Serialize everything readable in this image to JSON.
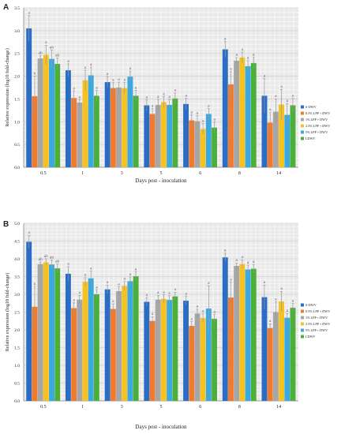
{
  "chart_data": [
    {
      "type": "bar",
      "panel_label": "A",
      "ylabel": "Relative expression (log10 fold-change)",
      "xlabel": "Days post - inoculation",
      "ylim": [
        0,
        3.5
      ],
      "yticks": [
        "0.0",
        "0.5",
        "1.0",
        "1.5",
        "2.0",
        "2.5",
        "3.0",
        "3.5"
      ],
      "grid": true,
      "legend_position": "right",
      "categories": [
        "0.5",
        "1",
        "3",
        "5",
        "6",
        "8",
        "14"
      ],
      "series": [
        {
          "name": "S-DWV",
          "color": "#2B6CC4",
          "values": [
            3.05,
            2.13,
            1.87,
            1.36,
            1.39,
            2.59,
            1.57
          ],
          "errors": [
            0.28,
            0.14,
            0.12,
            0.12,
            0.12,
            0.17,
            0.38
          ],
          "letters": [
            "a",
            "a",
            "a",
            "a",
            "a",
            "a",
            "a"
          ]
        },
        {
          "name": "0.5% LPP + DWV",
          "color": "#F07A2E",
          "values": [
            1.56,
            1.52,
            1.74,
            1.17,
            1.03,
            1.82,
            0.98
          ],
          "errors": [
            0.44,
            0.15,
            0.12,
            0.12,
            0.12,
            0.28,
            0.23
          ],
          "letters": [
            "b",
            "a",
            "a",
            "a",
            "a",
            "a",
            "a"
          ]
        },
        {
          "name": "1% LPP + DWV",
          "color": "#A6A6A6",
          "values": [
            2.39,
            1.42,
            1.75,
            1.37,
            1.01,
            2.34,
            1.22
          ],
          "errors": [
            0.06,
            0.06,
            0.12,
            0.12,
            0.12,
            0.07,
            0.28
          ],
          "letters": [
            "ab",
            "a",
            "a",
            "a",
            "a",
            "a",
            "a"
          ]
        },
        {
          "name": "2.5% LPP + DWV",
          "color": "#F5C21F",
          "values": [
            2.47,
            1.91,
            1.74,
            1.43,
            0.84,
            2.41,
            1.38
          ],
          "errors": [
            0.21,
            0.22,
            0.12,
            0.12,
            0.12,
            0.12,
            0.33
          ],
          "letters": [
            "a",
            "a",
            "a",
            "a",
            "a",
            "a",
            "a"
          ]
        },
        {
          "name": "5% LPP + DWV",
          "color": "#3BA8E0",
          "values": [
            2.38,
            2.02,
            1.99,
            1.37,
            1.17,
            2.22,
            1.15
          ],
          "errors": [
            0.19,
            0.18,
            0.12,
            0.12,
            0.12,
            0.12,
            0.25
          ],
          "letters": [
            "ab",
            "a",
            "a",
            "a",
            "a",
            "a",
            "a"
          ]
        },
        {
          "name": "LDWV",
          "color": "#4CAF3A",
          "values": [
            2.27,
            1.57,
            1.57,
            1.51,
            0.87,
            2.29,
            1.36
          ],
          "errors": [
            0.13,
            0.12,
            0.12,
            0.12,
            0.12,
            0.12,
            0.15
          ],
          "letters": [
            "ab",
            "a",
            "a",
            "a",
            "a",
            "a",
            "a"
          ]
        }
      ]
    },
    {
      "type": "bar",
      "panel_label": "B",
      "ylabel": "Relative expression (log10 fold-change)",
      "xlabel": "Days post - inoculation",
      "ylim": [
        0,
        5.0
      ],
      "yticks": [
        "0.0",
        "0.5",
        "1.0",
        "1.5",
        "2.0",
        "2.5",
        "3.0",
        "3.5",
        "4.0",
        "4.5",
        "5.0"
      ],
      "grid": true,
      "legend_position": "right",
      "categories": [
        "0.5",
        "1",
        "3",
        "5",
        "6",
        "8",
        "14"
      ],
      "series": [
        {
          "name": "S-DWV",
          "color": "#2B6CC4",
          "values": [
            4.48,
            3.58,
            3.14,
            2.79,
            2.82,
            4.04,
            2.92
          ],
          "errors": [
            0.18,
            0.2,
            0.12,
            0.12,
            0.12,
            0.12,
            0.34
          ],
          "letters": [
            "a",
            "a",
            "a",
            "a",
            "a",
            "a",
            "a"
          ]
        },
        {
          "name": "0.5% LPP + DWV",
          "color": "#F07A2E",
          "values": [
            2.65,
            2.61,
            2.59,
            2.25,
            2.11,
            2.91,
            2.05
          ],
          "errors": [
            0.56,
            0.15,
            0.14,
            0.12,
            0.12,
            0.43,
            0.12
          ],
          "letters": [
            "b",
            "a",
            "a",
            "a",
            "a",
            "a",
            "a"
          ]
        },
        {
          "name": "1% LPP + DWV",
          "color": "#A6A6A6",
          "values": [
            3.85,
            2.85,
            3.09,
            2.85,
            2.46,
            3.8,
            2.5
          ],
          "errors": [
            0.06,
            0.12,
            0.12,
            0.12,
            0.12,
            0.08,
            0.29
          ],
          "letters": [
            "ab",
            "a",
            "a",
            "a",
            "a",
            "a",
            "a"
          ]
        },
        {
          "name": "2.5% LPP + DWV",
          "color": "#F5C21F",
          "values": [
            3.9,
            3.35,
            3.24,
            2.87,
            2.33,
            3.85,
            2.8
          ],
          "errors": [
            0.1,
            0.12,
            0.12,
            0.12,
            0.12,
            0.12,
            0.28
          ],
          "letters": [
            "ab",
            "a",
            "a",
            "a",
            "a",
            "a",
            "a"
          ]
        },
        {
          "name": "5% LPP + DWV",
          "color": "#3BA8E0",
          "values": [
            3.84,
            3.45,
            3.37,
            2.84,
            2.6,
            3.7,
            2.34
          ],
          "errors": [
            0.12,
            0.2,
            0.12,
            0.12,
            0.64,
            0.12,
            0.12
          ],
          "letters": [
            "ab",
            "a",
            "a",
            "a",
            "a",
            "a",
            "a"
          ]
        },
        {
          "name": "LDWV",
          "color": "#4CAF3A",
          "values": [
            3.73,
            3.0,
            3.51,
            2.94,
            2.31,
            3.72,
            2.62
          ],
          "errors": [
            0.12,
            0.12,
            0.12,
            0.12,
            0.12,
            0.12,
            0.12
          ],
          "letters": [
            "ab",
            "a",
            "a",
            "a",
            "a",
            "a",
            "a"
          ]
        }
      ]
    }
  ]
}
